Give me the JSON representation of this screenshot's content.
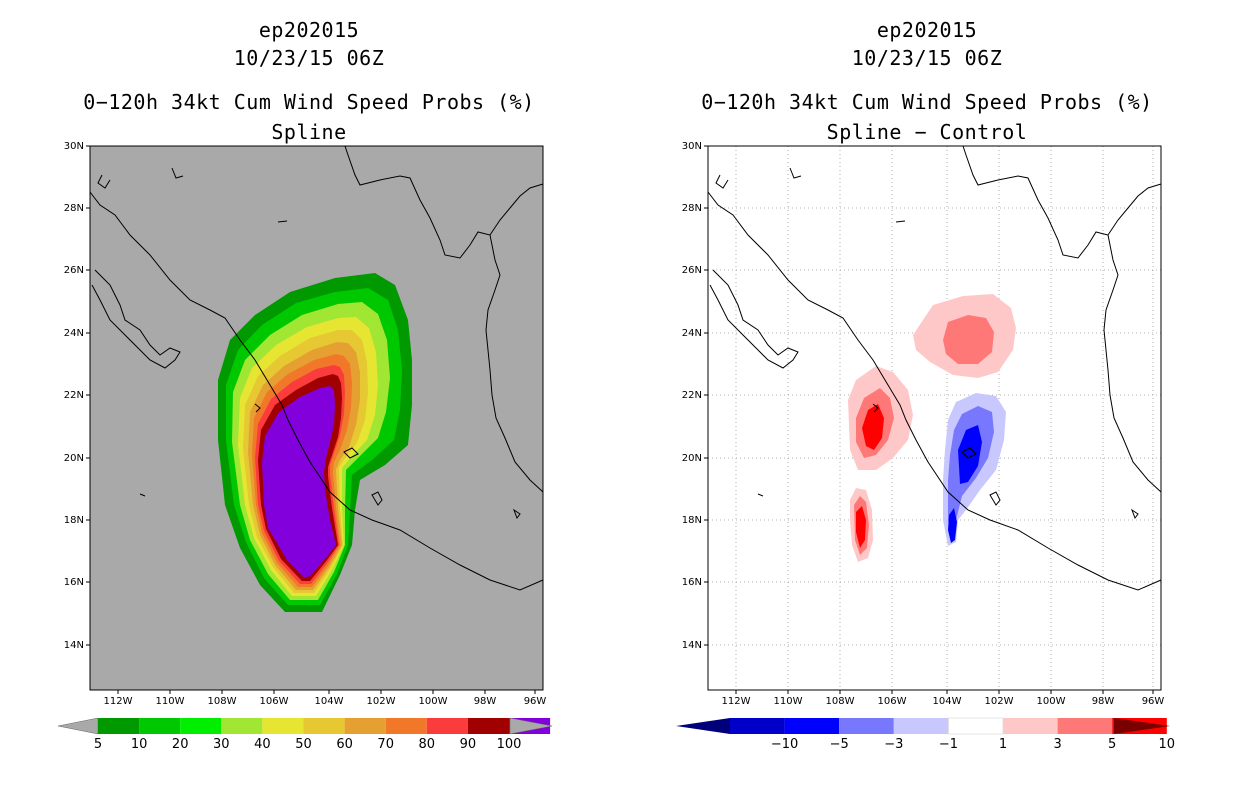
{
  "left": {
    "storm_id": "ep202015",
    "datetime": "10/23/15 06Z",
    "field_title": "0−120h 34kt Cum Wind Speed Probs (%)",
    "subtitle": "Spline",
    "lat_labels": [
      "30N",
      "28N",
      "26N",
      "24N",
      "22N",
      "20N",
      "18N",
      "16N",
      "14N"
    ],
    "lon_labels": [
      "112W",
      "110W",
      "108W",
      "106W",
      "104W",
      "102W",
      "100W",
      "98W",
      "96W"
    ],
    "colorbar": {
      "labels": [
        "5",
        "10",
        "20",
        "30",
        "40",
        "50",
        "60",
        "70",
        "80",
        "90",
        "100"
      ],
      "colors": [
        "#009a00",
        "#00c800",
        "#00ee00",
        "#a0e632",
        "#e6e632",
        "#e6c832",
        "#e6a032",
        "#f07828",
        "#fa3c3c",
        "#a00000",
        "#8200dc"
      ],
      "end_color": "#a9a9a9"
    },
    "background_color": "#a9a9a9"
  },
  "right": {
    "storm_id": "ep202015",
    "datetime": "10/23/15 06Z",
    "field_title": "0−120h 34kt Cum Wind Speed Probs (%)",
    "subtitle": "Spline − Control",
    "lat_labels": [
      "30N",
      "28N",
      "26N",
      "24N",
      "22N",
      "20N",
      "18N",
      "16N",
      "14N"
    ],
    "lon_labels": [
      "112W",
      "110W",
      "108W",
      "106W",
      "104W",
      "102W",
      "100W",
      "98W",
      "96W"
    ],
    "colorbar": {
      "labels": [
        "−10",
        "−5",
        "−3",
        "−1",
        "1",
        "3",
        "5",
        "10"
      ],
      "colors": [
        "#0000c8",
        "#0000ff",
        "#7878ff",
        "#c8c8ff",
        "#ffffff",
        "#ffc8c8",
        "#ff7878",
        "#ff0000",
        "#a00000"
      ],
      "left_end_color": "#00007a",
      "right_end_color": "#7a0000"
    },
    "background_color": "#ffffff"
  }
}
